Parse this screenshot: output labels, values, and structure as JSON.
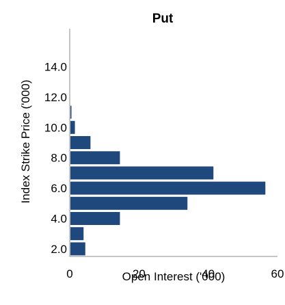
{
  "chart_data": {
    "type": "bar",
    "orientation": "horizontal",
    "title": "Put",
    "xlabel": "Open Interest ('000)",
    "ylabel": "Index Strike Price ('000)",
    "xlim": [
      0,
      60
    ],
    "ylim": [
      1.5,
      16.5
    ],
    "x_ticks": [
      0,
      20,
      40,
      60
    ],
    "x_tick_labels": [
      "0",
      "20",
      "40",
      "60"
    ],
    "y_ticks": [
      2,
      4,
      6,
      8,
      10,
      12,
      14
    ],
    "y_tick_labels": [
      "2.0",
      "4.0",
      "6.0",
      "8.0",
      "10.0",
      "12.0",
      "14.0"
    ],
    "grid": false,
    "legend": "none",
    "bar_color": "#1f497d",
    "series": [
      {
        "points": [
          {
            "y": 2.0,
            "x": 4.5
          },
          {
            "y": 3.0,
            "x": 4.0
          },
          {
            "y": 4.0,
            "x": 14.5
          },
          {
            "y": 5.0,
            "x": 34.0
          },
          {
            "y": 6.0,
            "x": 56.5
          },
          {
            "y": 7.0,
            "x": 41.5
          },
          {
            "y": 8.0,
            "x": 14.5
          },
          {
            "y": 9.0,
            "x": 6.0
          },
          {
            "y": 10.0,
            "x": 1.5
          },
          {
            "y": 11.0,
            "x": 0.5
          }
        ]
      }
    ]
  }
}
